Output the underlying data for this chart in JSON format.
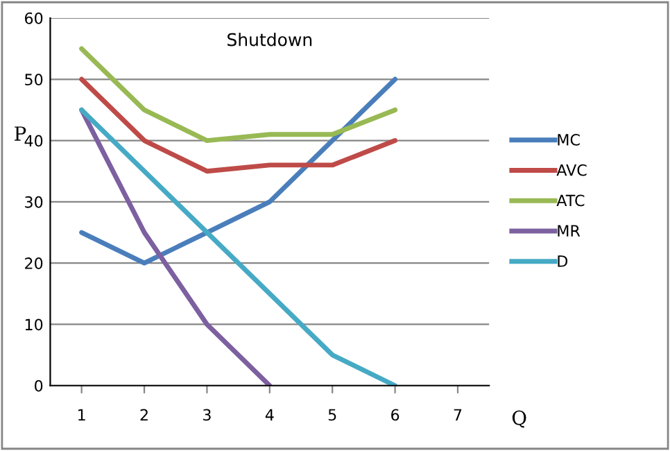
{
  "chart_data": {
    "type": "line",
    "title": "Shutdown",
    "xlabel": "Q",
    "ylabel": "P",
    "categories": [
      "1",
      "2",
      "3",
      "4",
      "5",
      "6",
      "7"
    ],
    "series": [
      {
        "name": "MC",
        "color": "#4a7ebb",
        "values": [
          25,
          20,
          25,
          30,
          40,
          50,
          null
        ]
      },
      {
        "name": "AVC",
        "color": "#be4b48",
        "values": [
          50,
          40,
          35,
          36,
          36,
          40,
          null
        ]
      },
      {
        "name": "ATC",
        "color": "#98b954",
        "values": [
          55,
          45,
          40,
          41,
          41,
          45,
          null
        ]
      },
      {
        "name": "MR",
        "color": "#7d60a0",
        "values": [
          45,
          25,
          10,
          0,
          null,
          null,
          null
        ]
      },
      {
        "name": "D",
        "color": "#46aac5",
        "values": [
          45,
          35,
          25,
          15,
          5,
          0,
          null
        ]
      }
    ],
    "ylim": [
      0,
      60
    ],
    "yticks": [
      0,
      10,
      20,
      30,
      40,
      50,
      60
    ],
    "grid": "y",
    "legend": "right",
    "marker": "none",
    "line_style": "solid"
  }
}
